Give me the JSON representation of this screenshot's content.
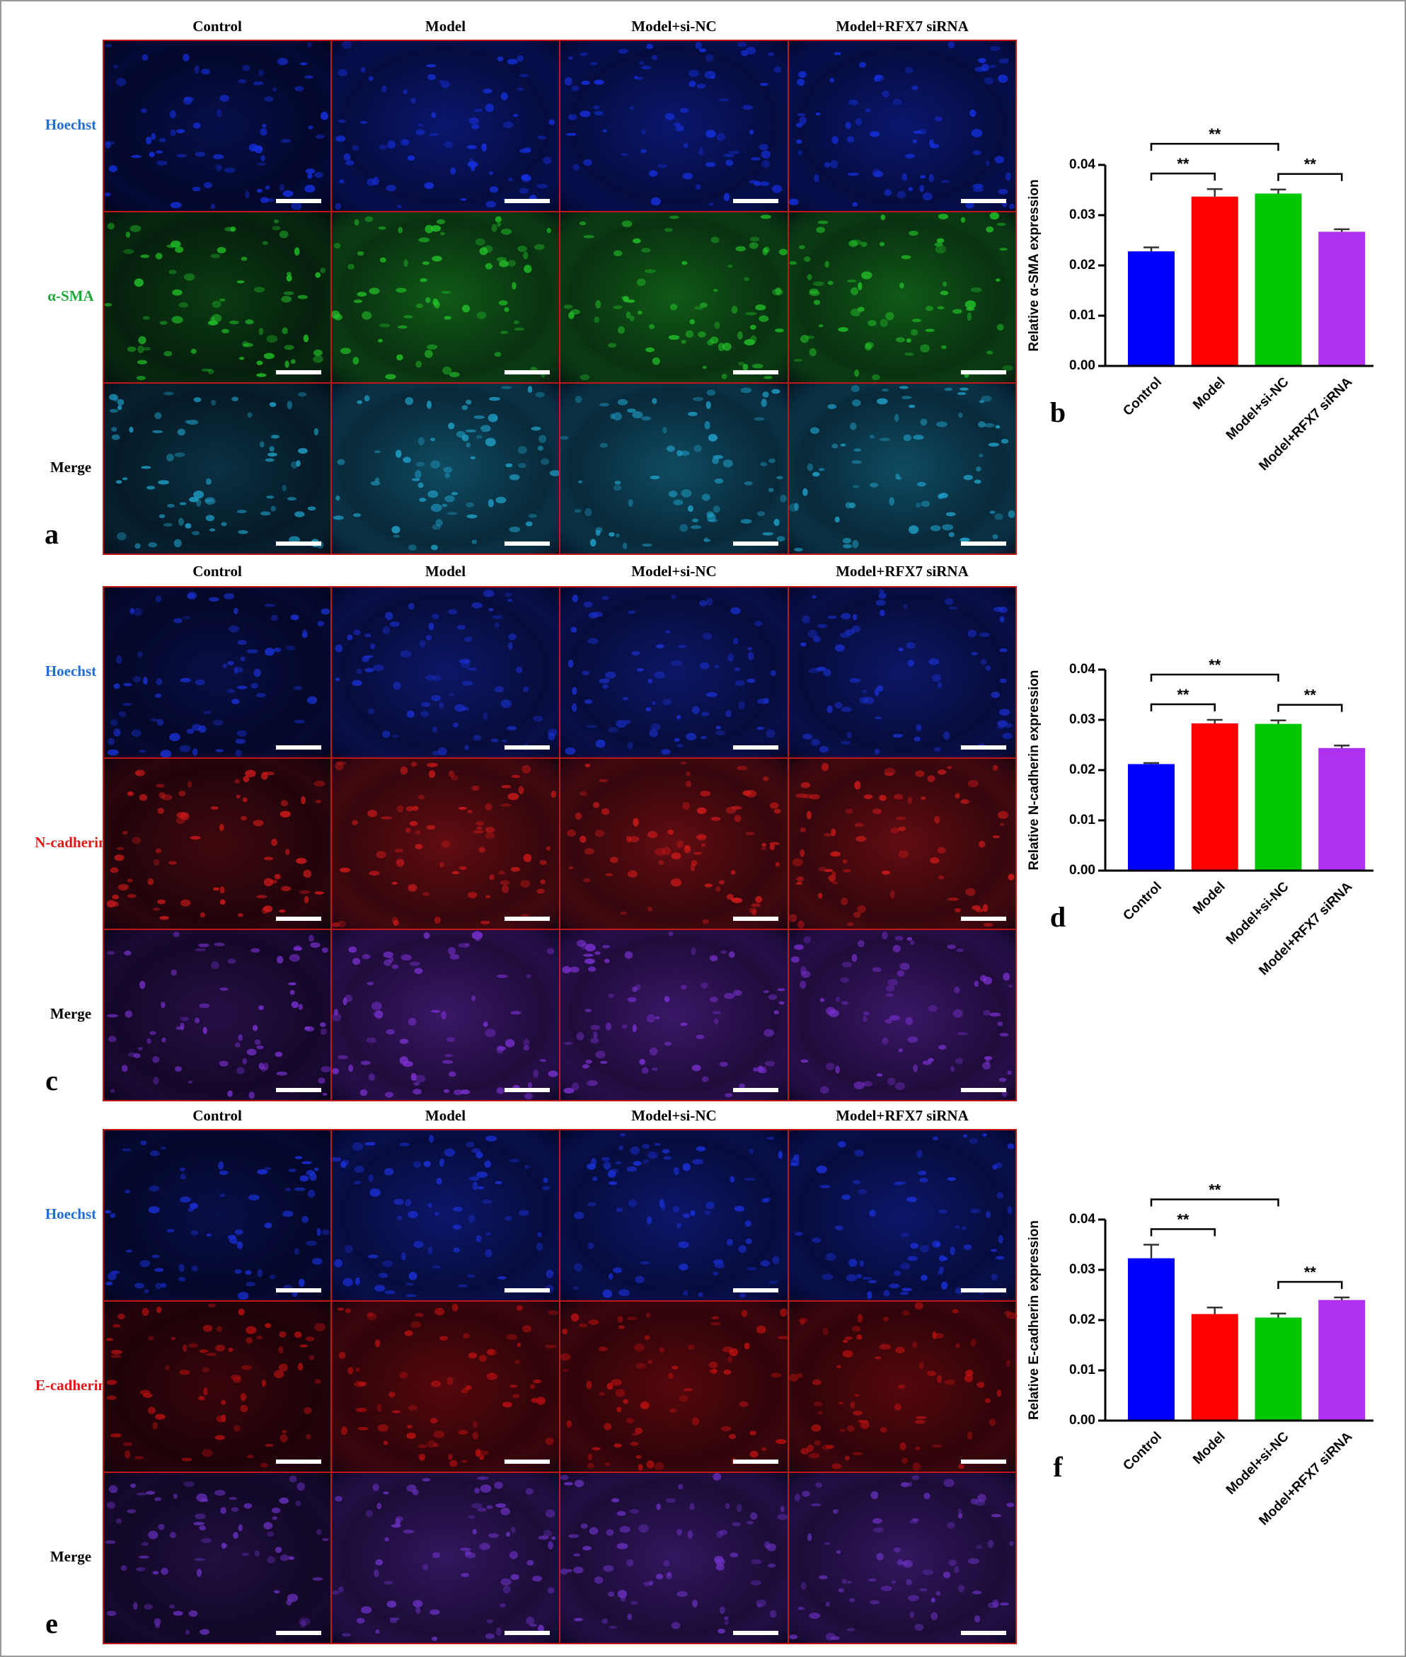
{
  "figure": {
    "panels": [
      {
        "letter": "a",
        "columns": [
          "Control",
          "Model",
          "Model+si-NC",
          "Model+RFX7 siRNA"
        ],
        "rows": [
          {
            "label": "Hoechst",
            "color": "#1f6fd6"
          },
          {
            "label": "α-SMA",
            "color": "#1fa83a"
          },
          {
            "label": "Merge",
            "color": "#000000"
          }
        ]
      },
      {
        "letter": "c",
        "columns": [
          "Control",
          "Model",
          "Model+si-NC",
          "Model+RFX7 siRNA"
        ],
        "rows": [
          {
            "label": "Hoechst",
            "color": "#1f6fd6"
          },
          {
            "label": "N-cadherin",
            "color": "#e01818"
          },
          {
            "label": "Merge",
            "color": "#000000"
          }
        ]
      },
      {
        "letter": "e",
        "columns": [
          "Control",
          "Model",
          "Model+si-NC",
          "Model+RFX7 siRNA"
        ],
        "rows": [
          {
            "label": "Hoechst",
            "color": "#1f6fd6"
          },
          {
            "label": "E-cadherin",
            "color": "#e01818"
          },
          {
            "label": "Merge",
            "color": "#000000"
          }
        ]
      }
    ]
  },
  "chart_data": [
    {
      "type": "bar",
      "panel_label": "b",
      "ylabel": "Relative α-SMA expression",
      "categories": [
        "Control",
        "Model",
        "Model+si-NC",
        "Model+RFX7 siRNA"
      ],
      "values": [
        0.0228,
        0.0337,
        0.0343,
        0.0267
      ],
      "errors": [
        0.0008,
        0.0015,
        0.0008,
        0.0005
      ],
      "colors": [
        "#0000ff",
        "#ff0000",
        "#00c800",
        "#b030f0"
      ],
      "ylim": [
        0,
        0.04
      ],
      "yticks": [
        {
          "value": 0,
          "label": "0.00"
        },
        {
          "value": 0.01,
          "label": "0.01"
        },
        {
          "value": 0.02,
          "label": "0.02"
        },
        {
          "value": 0.03,
          "label": "0.03"
        },
        {
          "value": 0.04,
          "label": "0.04"
        }
      ],
      "comparisons": [
        {
          "groups": [
            "Control",
            "Model+si-NC"
          ],
          "label": "**"
        },
        {
          "groups": [
            "Control",
            "Model"
          ],
          "label": "**"
        },
        {
          "groups": [
            "Model+si-NC",
            "Model+RFX7 siRNA"
          ],
          "label": "**"
        }
      ]
    },
    {
      "type": "bar",
      "panel_label": "d",
      "ylabel": "Relative N-cadherin expression",
      "categories": [
        "Control",
        "Model",
        "Model+si-NC",
        "Model+RFX7 siRNA"
      ],
      "values": [
        0.0212,
        0.0293,
        0.0292,
        0.0244
      ],
      "errors": [
        0.0002,
        0.0007,
        0.0007,
        0.0005
      ],
      "colors": [
        "#0000ff",
        "#ff0000",
        "#00c800",
        "#b030f0"
      ],
      "ylim": [
        0,
        0.04
      ],
      "yticks": [
        {
          "value": 0,
          "label": "0.00"
        },
        {
          "value": 0.01,
          "label": "0.01"
        },
        {
          "value": 0.02,
          "label": "0.02"
        },
        {
          "value": 0.03,
          "label": "0.03"
        },
        {
          "value": 0.04,
          "label": "0.04"
        }
      ],
      "comparisons": [
        {
          "groups": [
            "Control",
            "Model+si-NC"
          ],
          "label": "**"
        },
        {
          "groups": [
            "Control",
            "Model"
          ],
          "label": "**"
        },
        {
          "groups": [
            "Model+si-NC",
            "Model+RFX7 siRNA"
          ],
          "label": "**"
        }
      ]
    },
    {
      "type": "bar",
      "panel_label": "f",
      "ylabel": "Relative E-cadherin expression",
      "categories": [
        "Control",
        "Model",
        "Model+si-NC",
        "Model+RFX7 siRNA"
      ],
      "values": [
        0.0323,
        0.0212,
        0.0205,
        0.024
      ],
      "errors": [
        0.0027,
        0.0013,
        0.0008,
        0.0005
      ],
      "colors": [
        "#0000ff",
        "#ff0000",
        "#00c800",
        "#b030f0"
      ],
      "ylim": [
        0,
        0.04
      ],
      "yticks": [
        {
          "value": 0,
          "label": "0.00"
        },
        {
          "value": 0.01,
          "label": "0.01"
        },
        {
          "value": 0.02,
          "label": "0.02"
        },
        {
          "value": 0.03,
          "label": "0.03"
        },
        {
          "value": 0.04,
          "label": "0.04"
        }
      ],
      "comparisons": [
        {
          "groups": [
            "Control",
            "Model+si-NC"
          ],
          "label": "**"
        },
        {
          "groups": [
            "Control",
            "Model"
          ],
          "label": "**"
        },
        {
          "groups": [
            "Model+si-NC",
            "Model+RFX7 siRNA"
          ],
          "label": "**"
        }
      ]
    }
  ]
}
